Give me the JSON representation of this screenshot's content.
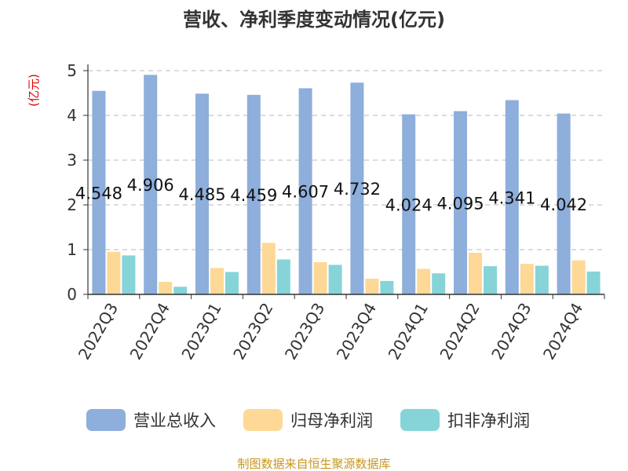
{
  "chart_data": {
    "type": "bar",
    "title": "营收、净利季度变动情况(亿元)",
    "unit": "(亿元)",
    "categories": [
      "2022Q3",
      "2022Q4",
      "2023Q1",
      "2023Q2",
      "2023Q3",
      "2023Q4",
      "2024Q1",
      "2024Q2",
      "2024Q3",
      "2024Q4"
    ],
    "ylim": [
      0,
      5
    ],
    "yticks": [
      0,
      1,
      2,
      3,
      4,
      5
    ],
    "grid": true,
    "legend_position": "bottom",
    "series": [
      {
        "name": "营业总收入",
        "color": "#8eaedb",
        "values": [
          4.548,
          4.906,
          4.485,
          4.459,
          4.607,
          4.732,
          4.024,
          4.095,
          4.341,
          4.042
        ],
        "labels": [
          "4.548",
          "4.906",
          "4.485",
          "4.459",
          "4.607",
          "4.732",
          "4.024",
          "4.095",
          "4.341",
          "4.042"
        ]
      },
      {
        "name": "归母净利润",
        "color": "#fed896",
        "values": [
          0.95,
          0.28,
          0.59,
          1.15,
          0.72,
          0.35,
          0.57,
          0.93,
          0.68,
          0.76
        ]
      },
      {
        "name": "扣非净利润",
        "color": "#86d4d8",
        "values": [
          0.87,
          0.17,
          0.5,
          0.78,
          0.66,
          0.3,
          0.47,
          0.63,
          0.64,
          0.51
        ]
      }
    ],
    "source": "制图数据来自恒生聚源数据库"
  }
}
